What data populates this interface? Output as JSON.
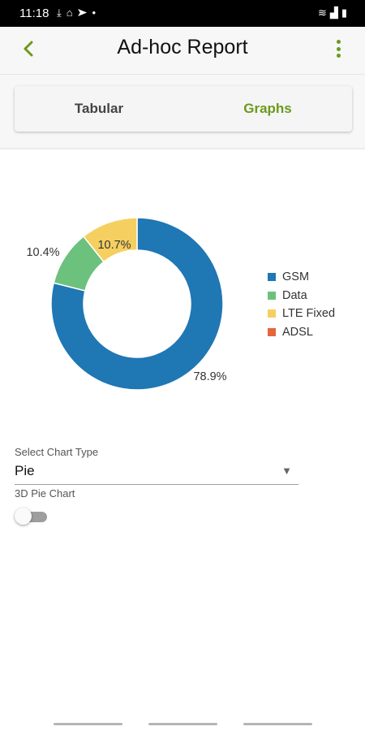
{
  "status_bar": {
    "time": "11:18",
    "left_icons": [
      "check-download-icon",
      "voicemail-icon",
      "telegram-icon",
      "dot-icon"
    ],
    "right_icons": [
      "wifi-icon",
      "signal-icon",
      "battery-icon"
    ]
  },
  "header": {
    "title": "Ad-hoc Report",
    "back_icon": "chevron-left-icon",
    "menu_icon": "more-vertical-icon",
    "accent_color": "#6b9a1f"
  },
  "tabs": [
    {
      "label": "Tabular",
      "active": false
    },
    {
      "label": "Graphs",
      "active": true
    }
  ],
  "chart_data": {
    "type": "pie",
    "variant": "donut",
    "categories": [
      "GSM",
      "Data",
      "LTE Fixed",
      "ADSL"
    ],
    "values": [
      78.9,
      10.4,
      10.7,
      0
    ],
    "labels": [
      "78.9%",
      "10.4%",
      "10.7%",
      ""
    ],
    "colors": [
      "#1f77b4",
      "#6cc17d",
      "#f5d060",
      "#e4663a"
    ],
    "legend_position": "right"
  },
  "form": {
    "chart_type_label": "Select Chart Type",
    "chart_type_value": "Pie",
    "pie3d_label": "3D Pie Chart",
    "pie3d_enabled": false
  }
}
